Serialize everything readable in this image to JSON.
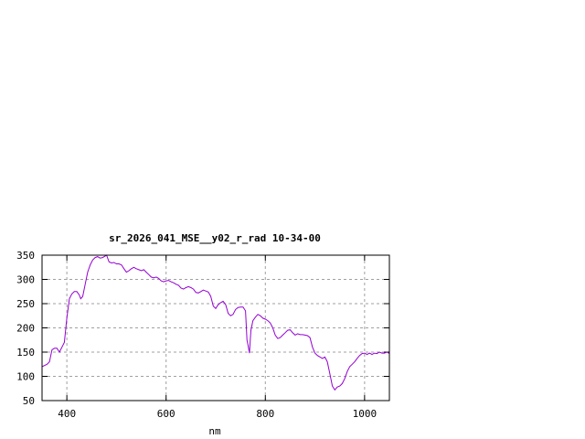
{
  "chart_data": {
    "type": "line",
    "title": "sr_2026_041_MSE__y02_r_rad 10-34-00",
    "xlabel": "nm",
    "ylabel": "",
    "xlim": [
      350,
      1050
    ],
    "ylim": [
      50,
      350
    ],
    "xticks": [
      400,
      600,
      800,
      1000
    ],
    "yticks": [
      50,
      100,
      150,
      200,
      250,
      300,
      350
    ],
    "grid": true,
    "line_color": "#9400d3",
    "grid_color": "#a0a0a0",
    "series": [
      {
        "x": [
          350,
          360,
          365,
          370,
          375,
          380,
          385,
          390,
          395,
          400,
          405,
          410,
          415,
          420,
          425,
          428,
          432,
          437,
          442,
          447,
          452,
          457,
          462,
          467,
          472,
          477,
          480,
          485,
          490,
          495,
          500,
          505,
          510,
          515,
          520,
          525,
          530,
          535,
          540,
          545,
          550,
          555,
          560,
          565,
          570,
          575,
          580,
          585,
          590,
          595,
          600,
          605,
          610,
          615,
          620,
          625,
          630,
          635,
          640,
          645,
          650,
          655,
          660,
          665,
          670,
          675,
          680,
          685,
          690,
          695,
          700,
          705,
          710,
          715,
          720,
          725,
          730,
          735,
          740,
          745,
          750,
          755,
          760,
          763,
          765,
          768,
          771,
          775,
          780,
          785,
          790,
          795,
          800,
          805,
          810,
          815,
          820,
          825,
          830,
          835,
          840,
          845,
          850,
          855,
          860,
          865,
          870,
          875,
          880,
          885,
          890,
          895,
          900,
          905,
          910,
          915,
          920,
          925,
          930,
          935,
          940,
          945,
          950,
          955,
          960,
          965,
          970,
          975,
          980,
          985,
          990,
          995,
          1000,
          1005,
          1010,
          1015,
          1020,
          1025,
          1030,
          1035,
          1040,
          1045,
          1050
        ],
        "y": [
          120,
          125,
          130,
          155,
          158,
          158,
          150,
          160,
          170,
          220,
          260,
          270,
          275,
          275,
          268,
          260,
          265,
          290,
          315,
          330,
          340,
          345,
          347,
          344,
          345,
          348,
          350,
          336,
          334,
          335,
          332,
          332,
          330,
          322,
          315,
          318,
          322,
          325,
          322,
          320,
          318,
          320,
          315,
          310,
          305,
          303,
          305,
          302,
          297,
          295,
          297,
          298,
          295,
          293,
          290,
          288,
          282,
          280,
          283,
          285,
          283,
          280,
          273,
          272,
          275,
          278,
          276,
          274,
          265,
          245,
          240,
          248,
          252,
          255,
          248,
          230,
          225,
          228,
          238,
          242,
          243,
          243,
          235,
          175,
          165,
          148,
          195,
          215,
          222,
          228,
          225,
          220,
          218,
          215,
          210,
          200,
          185,
          178,
          180,
          185,
          190,
          195,
          196,
          190,
          185,
          188,
          186,
          186,
          185,
          184,
          180,
          160,
          148,
          143,
          140,
          137,
          140,
          130,
          105,
          80,
          72,
          78,
          80,
          85,
          95,
          110,
          120,
          125,
          130,
          137,
          143,
          147,
          148,
          145,
          148,
          145,
          148,
          147,
          150,
          148,
          148,
          150,
          147
        ]
      }
    ]
  }
}
